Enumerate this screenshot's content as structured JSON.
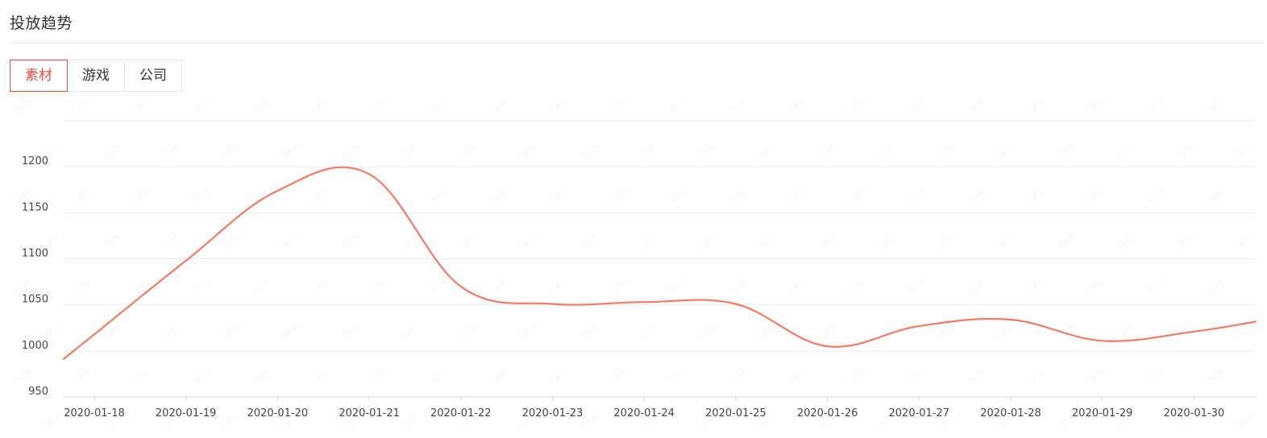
{
  "header": {
    "title": "投放趋势"
  },
  "tabs": [
    {
      "label": "素材",
      "active": true
    },
    {
      "label": "游戏",
      "active": false
    },
    {
      "label": "公司",
      "active": false
    }
  ],
  "watermark": {
    "text": "rank"
  },
  "colors": {
    "accent": "#ee4f3d",
    "line": "#f47a66",
    "grid": "#e8ebf0",
    "axis": "#c9d3e8",
    "text": "#333333"
  },
  "chart_data": {
    "type": "line",
    "title": "",
    "xlabel": "",
    "ylabel": "",
    "categories": [
      "2020-01-18",
      "2020-01-19",
      "2020-01-20",
      "2020-01-21",
      "2020-01-22",
      "2020-01-23",
      "2020-01-24",
      "2020-01-25",
      "2020-01-26",
      "2020-01-27",
      "2020-01-28",
      "2020-01-29",
      "2020-01-30"
    ],
    "y_ticks": [
      950,
      1000,
      1050,
      1100,
      1150,
      1200
    ],
    "ylim": [
      950,
      1250
    ],
    "grid": true,
    "series": [
      {
        "values": [
          1018,
          1098,
          1174,
          1192,
          1070,
          1051,
          1053,
          1051,
          1005,
          1027,
          1034,
          1011,
          1021
        ]
      }
    ]
  }
}
